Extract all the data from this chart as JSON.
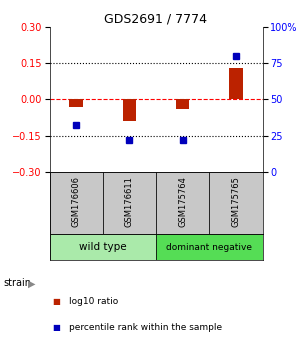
{
  "title": "GDS2691 / 7774",
  "samples": [
    "GSM176606",
    "GSM176611",
    "GSM175764",
    "GSM175765"
  ],
  "log10_ratio": [
    -0.03,
    -0.09,
    -0.04,
    0.13
  ],
  "percentile_rank": [
    32,
    22,
    22,
    80
  ],
  "ylim_left": [
    -0.3,
    0.3
  ],
  "ylim_right": [
    0,
    100
  ],
  "yticks_left": [
    -0.3,
    -0.15,
    0,
    0.15,
    0.3
  ],
  "yticks_right": [
    0,
    25,
    50,
    75,
    100
  ],
  "ytick_labels_right": [
    "0",
    "25",
    "50",
    "75",
    "100%"
  ],
  "bar_color": "#BB2200",
  "dot_color": "#0000BB",
  "bar_width": 0.25,
  "dot_size": 25,
  "sample_bg": "#C8C8C8",
  "group_colors": [
    "#AAEAAA",
    "#55DD55"
  ],
  "group_labels": [
    "wild type",
    "dominant negative"
  ],
  "group_ranges": [
    [
      0,
      1
    ],
    [
      2,
      3
    ]
  ],
  "legend_items": [
    {
      "color": "#BB2200",
      "label": "log10 ratio"
    },
    {
      "color": "#0000BB",
      "label": "percentile rank within the sample"
    }
  ]
}
